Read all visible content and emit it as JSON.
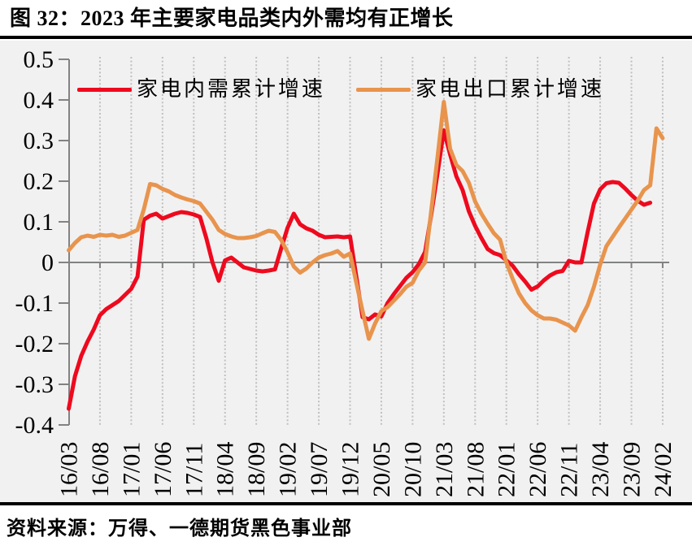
{
  "title": "图 32：2023 年主要家电品类内外需均有正增长",
  "source": "资料来源：万得、一德期货黑色事业部",
  "colors": {
    "domestic": "#ee0a1e",
    "export": "#e8944d",
    "axis": "#828282",
    "grid": "#c0bfbf",
    "panel_bg": "#f2f1f1",
    "text": "#000000"
  },
  "legend": {
    "domestic_label": "家电内需累计增速",
    "export_label": "家电出口累计增速"
  },
  "chart_data": {
    "type": "line",
    "title": "图 32：2023 年主要家电品类内外需均有正增长",
    "xlabel": "",
    "ylabel": "",
    "ylim": [
      -0.4,
      0.5
    ],
    "grid": "vertical-dotted",
    "legend_position": "top",
    "y_tick_labels": [
      "0.5",
      "0.4",
      "0.3",
      "0.2",
      "0.1",
      "0",
      "-0.1",
      "-0.2",
      "-0.3",
      "-0.4"
    ],
    "x_tick_labels": [
      "16/03",
      "16/08",
      "17/01",
      "17/06",
      "17/11",
      "18/04",
      "18/09",
      "19/02",
      "19/07",
      "19/12",
      "20/05",
      "20/10",
      "21/03",
      "21/08",
      "22/01",
      "22/06",
      "22/11",
      "23/04",
      "23/09",
      "24/02"
    ],
    "x": [
      "16/03",
      "16/04",
      "16/05",
      "16/06",
      "16/07",
      "16/08",
      "16/09",
      "16/10",
      "16/11",
      "16/12",
      "17/01",
      "17/02",
      "17/03",
      "17/04",
      "17/05",
      "17/06",
      "17/07",
      "17/08",
      "17/09",
      "17/10",
      "17/11",
      "17/12",
      "18/01",
      "18/02",
      "18/03",
      "18/04",
      "18/05",
      "18/06",
      "18/07",
      "18/08",
      "18/09",
      "18/10",
      "18/11",
      "18/12",
      "19/01",
      "19/02",
      "19/03",
      "19/04",
      "19/05",
      "19/06",
      "19/07",
      "19/08",
      "19/09",
      "19/10",
      "19/11",
      "19/12",
      "20/01",
      "20/02",
      "20/03",
      "20/04",
      "20/05",
      "20/06",
      "20/07",
      "20/08",
      "20/09",
      "20/10",
      "20/11",
      "20/12",
      "21/01",
      "21/02",
      "21/03",
      "21/04",
      "21/05",
      "21/06",
      "21/07",
      "21/08",
      "21/09",
      "21/10",
      "21/11",
      "21/12",
      "22/01",
      "22/02",
      "22/03",
      "22/04",
      "22/05",
      "22/06",
      "22/07",
      "22/08",
      "22/09",
      "22/10",
      "22/11",
      "22/12",
      "23/01",
      "23/02",
      "23/03",
      "23/04",
      "23/05",
      "23/06",
      "23/07",
      "23/08",
      "23/09",
      "23/10",
      "23/11",
      "23/12",
      "24/01",
      "24/02"
    ],
    "series": [
      {
        "name": "家电内需累计增速",
        "color": "#ee0a1e",
        "values": [
          -0.36,
          -0.28,
          -0.23,
          -0.195,
          -0.165,
          -0.13,
          -0.115,
          -0.105,
          -0.095,
          -0.08,
          -0.065,
          -0.035,
          0.105,
          0.115,
          0.12,
          0.108,
          0.114,
          0.12,
          0.124,
          0.122,
          0.118,
          0.112,
          0.06,
          0.0,
          -0.045,
          0.005,
          0.012,
          0.0,
          -0.012,
          -0.016,
          -0.02,
          -0.022,
          -0.02,
          -0.017,
          0.035,
          0.085,
          0.12,
          0.094,
          0.084,
          0.078,
          0.068,
          0.062,
          0.063,
          0.064,
          0.062,
          0.064,
          -0.035,
          -0.135,
          -0.14,
          -0.128,
          -0.133,
          -0.1,
          -0.078,
          -0.058,
          -0.038,
          -0.024,
          -0.004,
          0.026,
          0.12,
          0.22,
          0.325,
          0.266,
          0.212,
          0.178,
          0.126,
          0.09,
          0.06,
          0.033,
          0.023,
          0.018,
          0.005,
          -0.008,
          -0.029,
          -0.047,
          -0.067,
          -0.059,
          -0.044,
          -0.032,
          -0.024,
          -0.021,
          0.004,
          0.0,
          0.0,
          0.075,
          0.145,
          0.18,
          0.195,
          0.198,
          0.196,
          0.182,
          0.166,
          0.152,
          0.142,
          0.147,
          null,
          null
        ]
      },
      {
        "name": "家电出口累计增速",
        "color": "#e8944d",
        "values": [
          0.03,
          0.048,
          0.062,
          0.066,
          0.063,
          0.068,
          0.066,
          0.068,
          0.063,
          0.066,
          0.073,
          0.08,
          0.13,
          0.193,
          0.19,
          0.181,
          0.175,
          0.166,
          0.16,
          0.155,
          0.151,
          0.145,
          0.125,
          0.105,
          0.08,
          0.07,
          0.064,
          0.06,
          0.06,
          0.062,
          0.065,
          0.072,
          0.078,
          0.075,
          0.055,
          0.025,
          -0.01,
          -0.025,
          -0.015,
          0.0,
          0.012,
          0.018,
          0.022,
          0.028,
          0.014,
          0.022,
          -0.05,
          -0.12,
          -0.188,
          -0.15,
          -0.12,
          -0.11,
          -0.094,
          -0.078,
          -0.06,
          -0.05,
          -0.02,
          0.0,
          0.13,
          0.26,
          0.395,
          0.28,
          0.24,
          0.225,
          0.196,
          0.15,
          0.12,
          0.095,
          0.072,
          0.056,
          0.0,
          -0.04,
          -0.076,
          -0.1,
          -0.118,
          -0.13,
          -0.138,
          -0.138,
          -0.141,
          -0.148,
          -0.155,
          -0.168,
          -0.135,
          -0.105,
          -0.06,
          -0.005,
          0.04,
          0.063,
          0.086,
          0.108,
          0.13,
          0.152,
          0.178,
          0.19,
          0.33,
          0.306
        ]
      }
    ]
  }
}
